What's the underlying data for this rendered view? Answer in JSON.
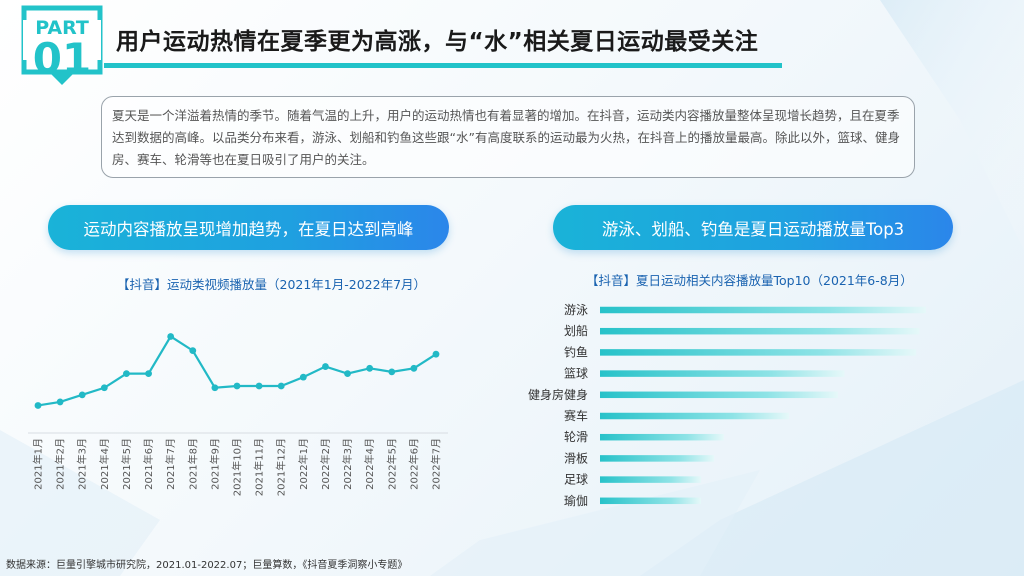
{
  "part": {
    "label": "PART",
    "number": "01"
  },
  "header": {
    "title": "用户运动热情在夏季更为高涨，与“水”相关夏日运动最受关注"
  },
  "intro": {
    "text": "夏天是一个洋溢着热情的季节。随着气温的上升，用户的运动热情也有着显著的增加。在抖音，运动类内容播放量整体呈现增长趋势，且在夏季达到数据的高峰。以品类分布来看，游泳、划船和钓鱼这些跟“水”有高度联系的运动最为火热，在抖音上的播放量最高。除此以外，篮球、健身房、赛车、轮滑等也在夏日吸引了用户的关注。"
  },
  "left_panel": {
    "headline": "运动内容播放呈现增加趋势，在夏日达到高峰",
    "chart_title": "【抖音】运动类视频播放量（2021年1月-2022年7月）"
  },
  "right_panel": {
    "headline": "游泳、划船、钓鱼是夏日运动播放量Top3",
    "chart_title": "【抖音】夏日运动相关内容播放量Top10（2021年6-8月）"
  },
  "source": {
    "text": "数据来源：巨量引擎城市研究院，2021.01-2022.07；巨量算数，《抖音夏季洞察小专题》"
  },
  "colors": {
    "accent": "#1ec3c8",
    "line": "#22b9c6",
    "bar": "#3ecfd6",
    "title_blue": "#1a63b0"
  },
  "chart_data": [
    {
      "type": "line",
      "title": "【抖音】运动类视频播放量（2021年1月-2022年7月）",
      "categories": [
        "2021年1月",
        "2021年2月",
        "2021年3月",
        "2021年4月",
        "2021年5月",
        "2021年6月",
        "2021年7月",
        "2021年8月",
        "2021年9月",
        "2021年10月",
        "2021年11月",
        "2021年12月",
        "2022年1月",
        "2022年2月",
        "2022年3月",
        "2022年4月",
        "2022年5月",
        "2022年6月",
        "2022年7月"
      ],
      "values": [
        15,
        17,
        21,
        25,
        33,
        33,
        54,
        46,
        25,
        26,
        26,
        26,
        31,
        37,
        33,
        36,
        34,
        36,
        44
      ],
      "ylim": [
        0,
        100
      ],
      "xlabel": "",
      "ylabel": "",
      "grid": false,
      "note": "values are relative index estimates; no y-axis shown"
    },
    {
      "type": "bar",
      "orientation": "horizontal",
      "title": "【抖音】夏日运动相关内容播放量Top10（2021年6-8月）",
      "categories": [
        "游泳",
        "划船",
        "钓鱼",
        "篮球",
        "健身房健身",
        "赛车",
        "轮滑",
        "滑板",
        "足球",
        "瑜伽"
      ],
      "values": [
        100,
        98,
        97,
        75,
        73,
        58,
        38,
        35,
        31,
        31
      ],
      "xlim": [
        0,
        100
      ],
      "note": "relative index estimates; no axis values shown"
    }
  ]
}
